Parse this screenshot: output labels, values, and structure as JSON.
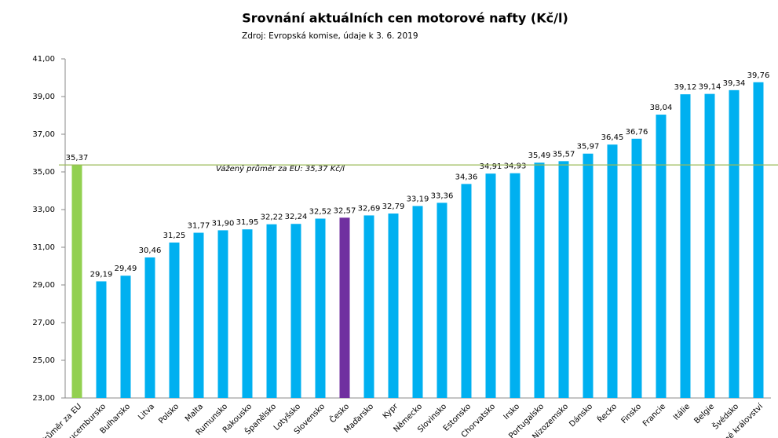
{
  "chart_data": {
    "type": "bar",
    "title": "Srovnání aktuálních cen motorové nafty (Kč/l)",
    "subtitle": "Zdroj: Evropská komise, údaje k 3. 6. 2019",
    "categories": [
      "Průměr za EU",
      "Lucembursko",
      "Bulharsko",
      "Litva",
      "Polsko",
      "Malta",
      "Rumunsko",
      "Rakousko",
      "Španělsko",
      "Lotyšsko",
      "Slovensko",
      "Česko",
      "Maďarsko",
      "Kypr",
      "Německo",
      "Slovinsko",
      "Estonsko",
      "Chorvatsko",
      "Irsko",
      "Portugalsko",
      "Nizozemsko",
      "Dánsko",
      "Řecko",
      "Finsko",
      "Francie",
      "Itálie",
      "Belgie",
      "Švédsko",
      "Spojené království"
    ],
    "values": [
      35.37,
      29.19,
      29.49,
      30.46,
      31.25,
      31.77,
      31.9,
      31.95,
      32.22,
      32.24,
      32.52,
      32.57,
      32.69,
      32.79,
      33.19,
      33.36,
      34.36,
      34.91,
      34.93,
      35.49,
      35.57,
      35.97,
      36.45,
      36.76,
      38.04,
      39.12,
      39.14,
      39.34,
      39.76
    ],
    "value_labels": [
      "35,37",
      "29,19",
      "29,49",
      "30,46",
      "31,25",
      "31,77",
      "31,90",
      "31,95",
      "32,22",
      "32,24",
      "32,52",
      "32,57",
      "32,69",
      "32,79",
      "33,19",
      "33,36",
      "34,36",
      "34,91",
      "34,93",
      "35,49",
      "35,57",
      "35,97",
      "36,45",
      "36,76",
      "38,04",
      "39,12",
      "39,14",
      "39,34",
      "39,76"
    ],
    "colors": [
      "#92d050",
      "#00b0f0",
      "#00b0f0",
      "#00b0f0",
      "#00b0f0",
      "#00b0f0",
      "#00b0f0",
      "#00b0f0",
      "#00b0f0",
      "#00b0f0",
      "#00b0f0",
      "#7030a0",
      "#00b0f0",
      "#00b0f0",
      "#00b0f0",
      "#00b0f0",
      "#00b0f0",
      "#00b0f0",
      "#00b0f0",
      "#00b0f0",
      "#00b0f0",
      "#00b0f0",
      "#00b0f0",
      "#00b0f0",
      "#00b0f0",
      "#00b0f0",
      "#00b0f0",
      "#00b0f0",
      "#00b0f0"
    ],
    "ylim": [
      23,
      41
    ],
    "yticks": [
      {
        "value": 23,
        "label": "23,00"
      },
      {
        "value": 25,
        "label": "25,00"
      },
      {
        "value": 27,
        "label": "27,00"
      },
      {
        "value": 29,
        "label": "29,00"
      },
      {
        "value": 31,
        "label": "31,00"
      },
      {
        "value": 33,
        "label": "33,00"
      },
      {
        "value": 35,
        "label": "35,00"
      },
      {
        "value": 37,
        "label": "37,00"
      },
      {
        "value": 39,
        "label": "39,00"
      },
      {
        "value": 41,
        "label": "41,00"
      }
    ],
    "reference_line": {
      "value": 35.37,
      "label": "Vážený průměr za EU: 35,37 Kč/l",
      "color": "#9bbb59"
    }
  }
}
